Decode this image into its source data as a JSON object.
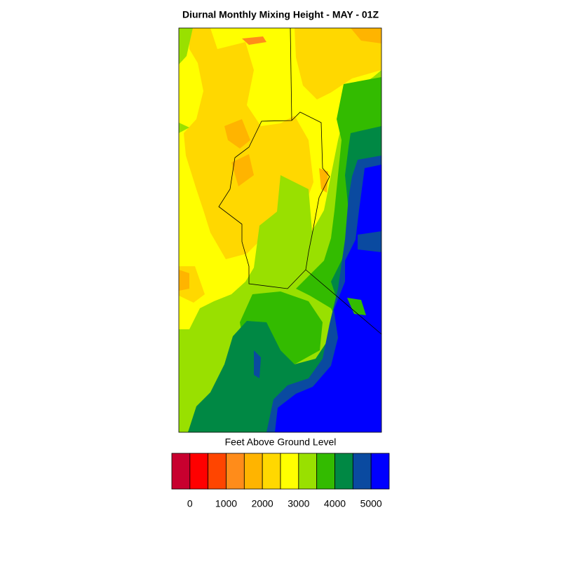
{
  "title": "Diurnal Monthly Mixing Height - MAY - 01Z",
  "colorbar": {
    "label": "Feet Above Ground Level",
    "colors": [
      "#c8002f",
      "#ff0000",
      "#ff4500",
      "#ff8c1a",
      "#ffb400",
      "#ffd800",
      "#ffff00",
      "#99e000",
      "#33bb00",
      "#008844",
      "#0a4aa0",
      "#0000ff"
    ],
    "lim": [
      -500,
      5500
    ],
    "ticks": [
      0,
      1000,
      2000,
      3000,
      4000,
      5000
    ]
  }
}
